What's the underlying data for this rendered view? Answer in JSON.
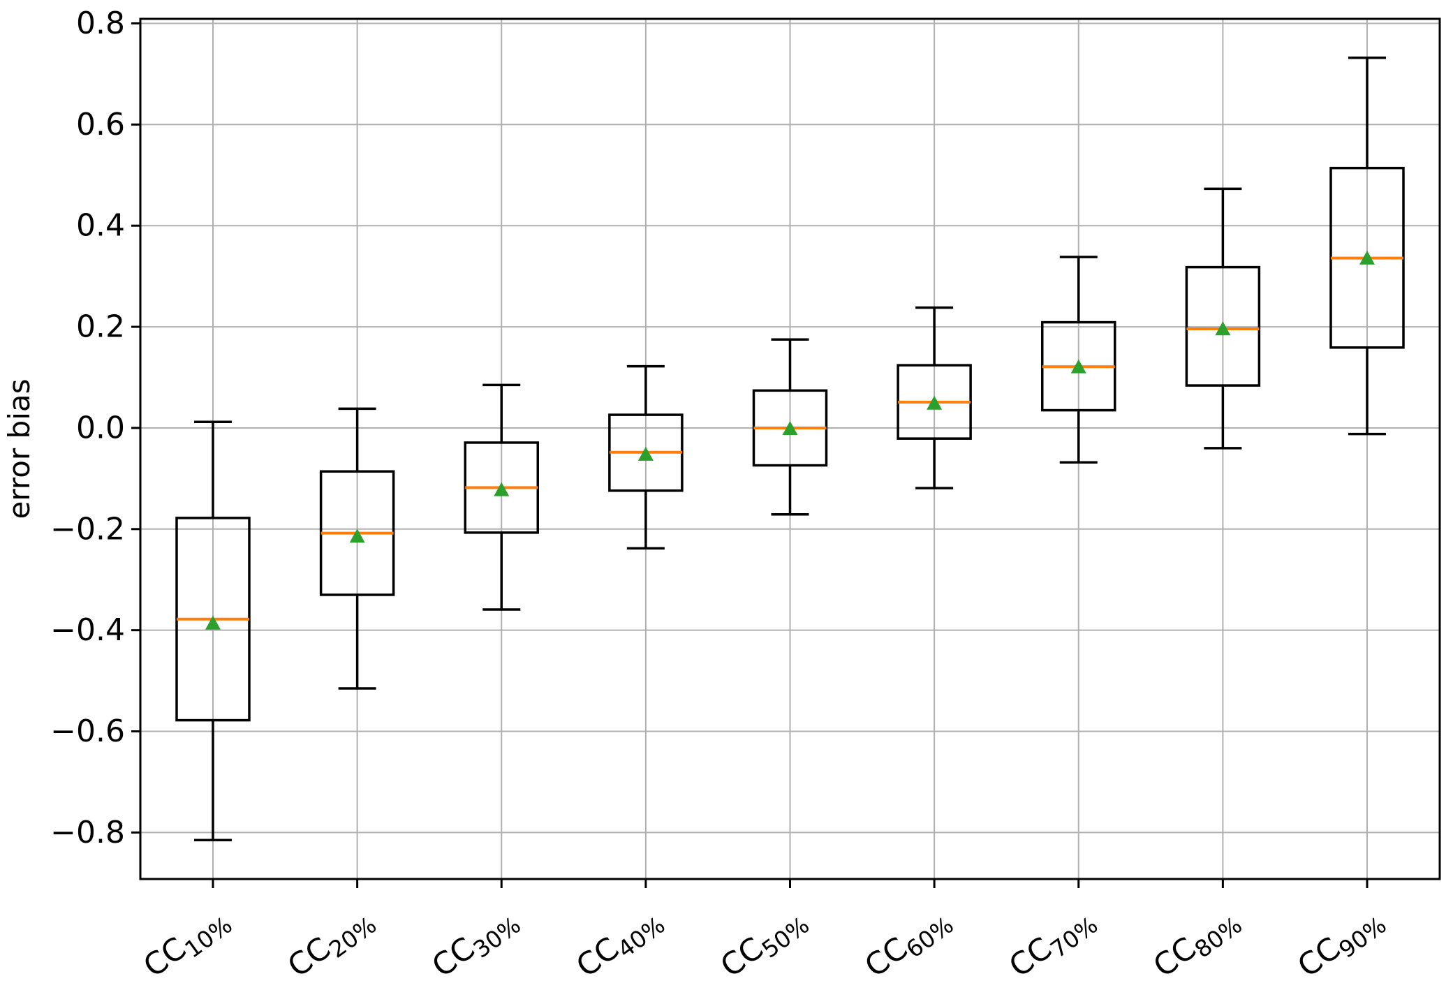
{
  "figure": {
    "background": "#ffffff"
  },
  "chart_data": {
    "type": "box",
    "title": "",
    "xlabel": "",
    "ylabel": "error bias",
    "ylim": [
      -0.892,
      0.809
    ],
    "grid": true,
    "legend": null,
    "yticks": [
      0.8,
      0.6,
      0.4,
      0.2,
      0.0,
      -0.2,
      -0.4,
      -0.6,
      -0.8
    ],
    "ytick_labels": [
      "0.8",
      "0.6",
      "0.4",
      "0.2",
      "0.0",
      "−0.2",
      "−0.4",
      "−0.6",
      "−0.8"
    ],
    "categories": [
      "CC10%",
      "CC20%",
      "CC30%",
      "CC40%",
      "CC50%",
      "CC60%",
      "CC70%",
      "CC80%",
      "CC90%"
    ],
    "category_labels": [
      {
        "base": "CC",
        "sub": "10%"
      },
      {
        "base": "CC",
        "sub": "20%"
      },
      {
        "base": "CC",
        "sub": "30%"
      },
      {
        "base": "CC",
        "sub": "40%"
      },
      {
        "base": "CC",
        "sub": "50%"
      },
      {
        "base": "CC",
        "sub": "60%"
      },
      {
        "base": "CC",
        "sub": "70%"
      },
      {
        "base": "CC",
        "sub": "80%"
      },
      {
        "base": "CC",
        "sub": "90%"
      }
    ],
    "boxes": [
      {
        "label": "CC10%",
        "whisker_low": -0.815,
        "q1": -0.578,
        "median": -0.378,
        "mean": -0.385,
        "q3": -0.178,
        "whisker_high": 0.012
      },
      {
        "label": "CC20%",
        "whisker_low": -0.515,
        "q1": -0.33,
        "median": -0.208,
        "mean": -0.213,
        "q3": -0.086,
        "whisker_high": 0.038
      },
      {
        "label": "CC30%",
        "whisker_low": -0.359,
        "q1": -0.207,
        "median": -0.118,
        "mean": -0.121,
        "q3": -0.029,
        "whisker_high": 0.085
      },
      {
        "label": "CC40%",
        "whisker_low": -0.238,
        "q1": -0.124,
        "median": -0.048,
        "mean": -0.051,
        "q3": 0.026,
        "whisker_high": 0.122
      },
      {
        "label": "CC50%",
        "whisker_low": -0.171,
        "q1": -0.074,
        "median": 0.0,
        "mean": 0.0,
        "q3": 0.074,
        "whisker_high": 0.175
      },
      {
        "label": "CC60%",
        "whisker_low": -0.119,
        "q1": -0.021,
        "median": 0.051,
        "mean": 0.05,
        "q3": 0.124,
        "whisker_high": 0.238
      },
      {
        "label": "CC70%",
        "whisker_low": -0.068,
        "q1": 0.035,
        "median": 0.121,
        "mean": 0.122,
        "q3": 0.209,
        "whisker_high": 0.338
      },
      {
        "label": "CC80%",
        "whisker_low": -0.04,
        "q1": 0.084,
        "median": 0.196,
        "mean": 0.197,
        "q3": 0.318,
        "whisker_high": 0.473
      },
      {
        "label": "CC90%",
        "whisker_low": -0.012,
        "q1": 0.159,
        "median": 0.336,
        "mean": 0.337,
        "q3": 0.514,
        "whisker_high": 0.732
      }
    ],
    "colors": {
      "box_line": "#000000",
      "median_line": "#ff7f0e",
      "mean_marker": "#2ca02c",
      "grid_line": "#b0b0b0",
      "axis_line": "#000000"
    }
  }
}
